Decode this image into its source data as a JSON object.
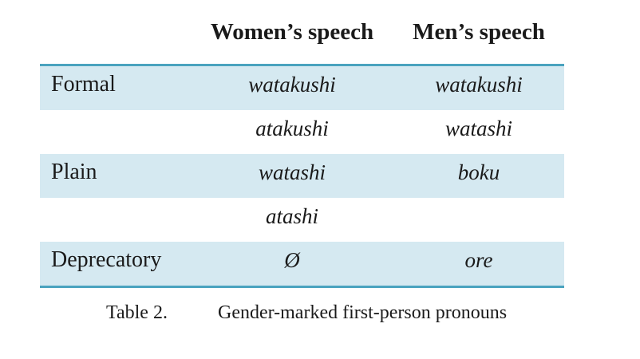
{
  "table": {
    "headers": [
      "",
      "Women’s speech",
      "Men’s speech"
    ],
    "rows": [
      {
        "label": "Formal",
        "women": "watakushi",
        "men": "watakushi",
        "shaded": true
      },
      {
        "label": "",
        "women": "atakushi",
        "men": "watashi",
        "shaded": false
      },
      {
        "label": "Plain",
        "women": "watashi",
        "men": "boku",
        "shaded": true
      },
      {
        "label": "",
        "women": "atashi",
        "men": "",
        "shaded": false
      },
      {
        "label": "Deprecatory",
        "women": "Ø",
        "men": "ore",
        "shaded": true
      }
    ],
    "colors": {
      "shade": "#d5e9f1",
      "rule": "#4aa3bf"
    }
  },
  "caption": {
    "number": "Table 2.",
    "text": "Gender-marked first-person pronouns"
  }
}
